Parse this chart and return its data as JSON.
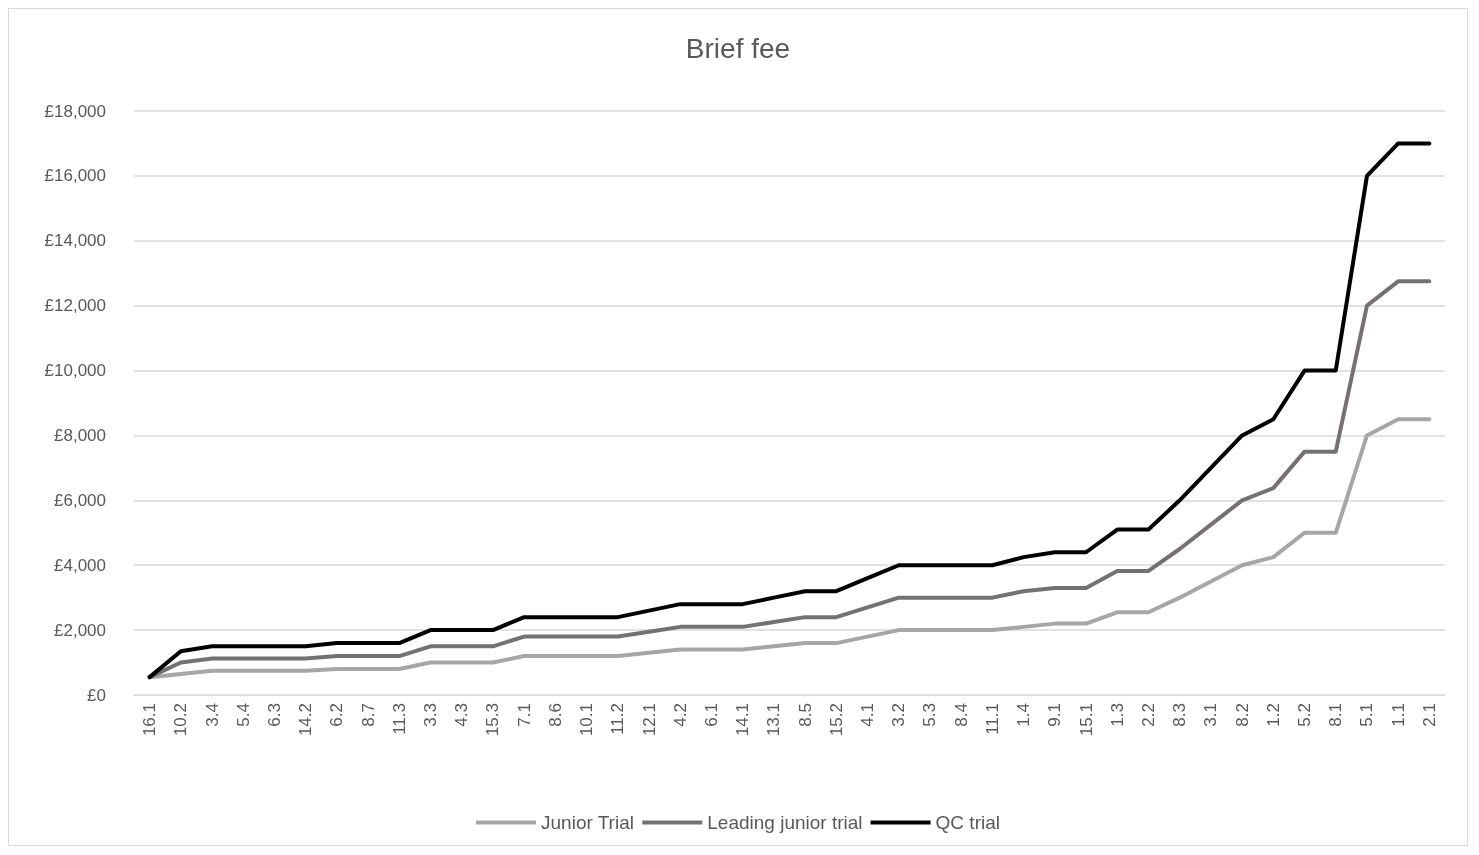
{
  "chart_data": {
    "type": "line",
    "title": "Brief fee",
    "categories": [
      "16.1",
      "10.2",
      "3.4",
      "5.4",
      "6.3",
      "14.2",
      "6.2",
      "8.7",
      "11.3",
      "3.3",
      "4.3",
      "15.3",
      "7.1",
      "8.6",
      "10.1",
      "11.2",
      "12.1",
      "4.2",
      "6.1",
      "14.1",
      "13.1",
      "8.5",
      "15.2",
      "4.1",
      "3.2",
      "5.3",
      "8.4",
      "11.1",
      "1.4",
      "9.1",
      "15.1",
      "1.3",
      "2.2",
      "8.3",
      "3.1",
      "8.2",
      "1.2",
      "5.2",
      "8.1",
      "5.1",
      "1.1",
      "2.1"
    ],
    "series": [
      {
        "name": "Junior Trial",
        "color": "#a6a6a6",
        "values": [
          550,
          650,
          750,
          750,
          750,
          750,
          800,
          800,
          800,
          1000,
          1000,
          1000,
          1200,
          1200,
          1200,
          1200,
          1300,
          1400,
          1400,
          1400,
          1500,
          1600,
          1600,
          1800,
          2000,
          2000,
          2000,
          2000,
          2100,
          2200,
          2200,
          2550,
          2550,
          3000,
          3500,
          4000,
          4250,
          5000,
          5000,
          8000,
          8500,
          8500
        ]
      },
      {
        "name": "Leading junior trial",
        "color": "#767171",
        "values": [
          550,
          1000,
          1125,
          1125,
          1125,
          1125,
          1200,
          1200,
          1200,
          1500,
          1500,
          1500,
          1800,
          1800,
          1800,
          1800,
          1950,
          2100,
          2100,
          2100,
          2250,
          2400,
          2400,
          2700,
          3000,
          3000,
          3000,
          3000,
          3200,
          3300,
          3300,
          3825,
          3825,
          4500,
          5250,
          6000,
          6375,
          7500,
          7500,
          12000,
          12750,
          12750
        ]
      },
      {
        "name": "QC trial",
        "color": "#000000",
        "values": [
          550,
          1350,
          1500,
          1500,
          1500,
          1500,
          1600,
          1600,
          1600,
          2000,
          2000,
          2000,
          2400,
          2400,
          2400,
          2400,
          2600,
          2800,
          2800,
          2800,
          3000,
          3200,
          3200,
          3600,
          4000,
          4000,
          4000,
          4000,
          4250,
          4400,
          4400,
          5100,
          5100,
          6000,
          7000,
          8000,
          8500,
          10000,
          10000,
          16000,
          17000,
          17000
        ]
      }
    ],
    "ylim": [
      0,
      18000
    ],
    "yticks": [
      {
        "value": 0,
        "label": "£0"
      },
      {
        "value": 2000,
        "label": "£2,000"
      },
      {
        "value": 4000,
        "label": "£4,000"
      },
      {
        "value": 6000,
        "label": "£6,000"
      },
      {
        "value": 8000,
        "label": "£8,000"
      },
      {
        "value": 10000,
        "label": "£10,000"
      },
      {
        "value": 12000,
        "label": "£12,000"
      },
      {
        "value": 14000,
        "label": "£14,000"
      },
      {
        "value": 16000,
        "label": "£16,000"
      },
      {
        "value": 18000,
        "label": "£18,000"
      }
    ],
    "grid": "y",
    "legend": "bottom",
    "marker": "none",
    "line_style": "solid"
  }
}
